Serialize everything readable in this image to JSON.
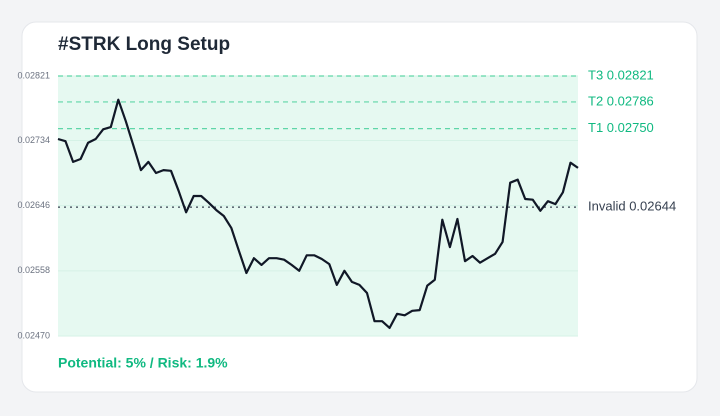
{
  "chart_data": {
    "type": "line",
    "title": "#STRK Long Setup",
    "series": [
      {
        "color": "#111827",
        "values": [
          0.02736,
          0.02733,
          0.02705,
          0.02709,
          0.02731,
          0.02736,
          0.02749,
          0.02752,
          0.02789,
          0.0276,
          0.02727,
          0.02694,
          0.02705,
          0.0269,
          0.02694,
          0.02693,
          0.02666,
          0.02637,
          0.02659,
          0.02659,
          0.0265,
          0.0264,
          0.02632,
          0.02616,
          0.02585,
          0.02555,
          0.02575,
          0.02566,
          0.02575,
          0.02575,
          0.02573,
          0.02566,
          0.02558,
          0.02579,
          0.02579,
          0.02574,
          0.02567,
          0.02539,
          0.02558,
          0.02543,
          0.02539,
          0.02528,
          0.0249,
          0.0249,
          0.02481,
          0.025,
          0.02498,
          0.02504,
          0.02505,
          0.02538,
          0.02546,
          0.02627,
          0.0259,
          0.02628,
          0.02571,
          0.02578,
          0.02569,
          0.02575,
          0.02581,
          0.02597,
          0.02677,
          0.02681,
          0.02655,
          0.02654,
          0.02639,
          0.02652,
          0.02648,
          0.02664,
          0.02704,
          0.02697
        ]
      }
    ],
    "ylim": [
      0.0247,
      0.02821
    ],
    "yticks": [
      {
        "value": 0.0247,
        "label": "0.02470"
      },
      0.02558,
      0.02646,
      0.02734,
      0.02821
    ],
    "grid": true,
    "levels": [
      {
        "label": "T3 0.02821",
        "value": 0.02821,
        "color": "#5fd6a8",
        "style": "dashed"
      },
      {
        "label": "T2 0.02786",
        "value": 0.02786,
        "color": "#5fd6a8",
        "style": "dashed"
      },
      {
        "label": "T1 0.02750",
        "value": 0.0275,
        "color": "#5fd6a8",
        "style": "dashed"
      },
      {
        "label": "Invalid 0.02644",
        "value": 0.02644,
        "color": "#374151",
        "style": "dotted"
      }
    ],
    "annotation": "Potential: 5% / Risk: 1.9%"
  }
}
